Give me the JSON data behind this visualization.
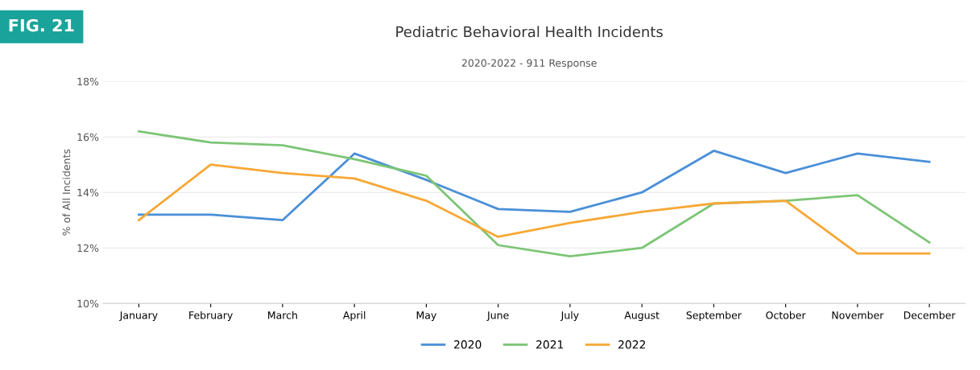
{
  "chart_data": {
    "type": "line",
    "title": "Pediatric Behavioral Health Incidents",
    "subtitle": "2020-2022 - 911 Response",
    "ylabel": "% of All Incidents",
    "annotations": [
      "FIG. 21"
    ],
    "categories": [
      "January",
      "February",
      "March",
      "April",
      "May",
      "June",
      "July",
      "August",
      "September",
      "October",
      "November",
      "December"
    ],
    "series": [
      {
        "name": "2020",
        "color": "#4a8fd8",
        "values": [
          13.2,
          13.2,
          13.0,
          15.4,
          14.45,
          13.4,
          13.3,
          14.0,
          15.5,
          14.7,
          15.4,
          15.1
        ]
      },
      {
        "name": "2021",
        "color": "#7cc576",
        "values": [
          16.2,
          15.8,
          15.7,
          15.2,
          14.6,
          12.1,
          11.7,
          12.0,
          13.6,
          13.7,
          13.9,
          12.2
        ]
      },
      {
        "name": "2022",
        "color": "#f7a836",
        "values": [
          13.0,
          15.0,
          14.7,
          14.5,
          13.7,
          12.4,
          12.9,
          13.3,
          13.6,
          13.7,
          11.8,
          11.8
        ]
      }
    ],
    "ylim": [
      10,
      18
    ],
    "yticks": [
      {
        "value": 10,
        "label": "10%"
      },
      {
        "value": 12,
        "label": "12%"
      },
      {
        "value": 14,
        "label": "14%"
      },
      {
        "value": 16,
        "label": "16%"
      },
      {
        "value": 18,
        "label": "18%"
      }
    ],
    "grid": "y",
    "legend": "bottom",
    "marker": "none",
    "line_style": "solid"
  }
}
